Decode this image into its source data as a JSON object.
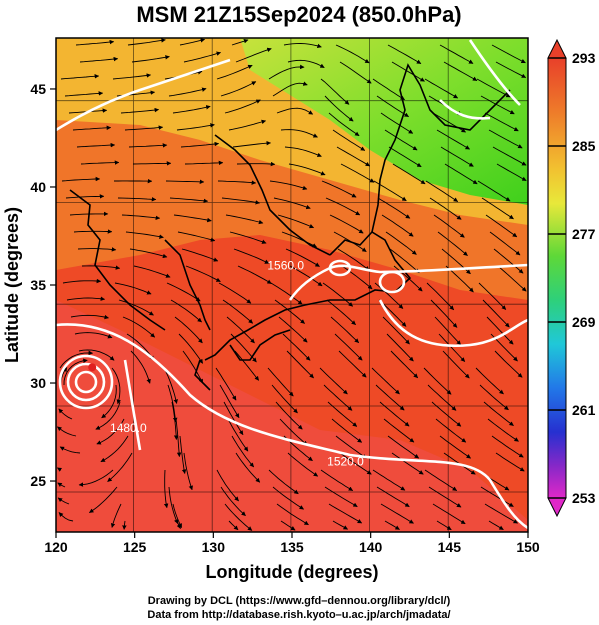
{
  "title": "MSM 21Z15Sep2024 (850.0hPa)",
  "xlabel": "Longitude (degrees)",
  "ylabel": "Latitude  (degrees)",
  "x_ticks": [
    120,
    125,
    130,
    135,
    140,
    145,
    150
  ],
  "y_ticks": [
    25,
    30,
    35,
    40,
    45
  ],
  "x_range": [
    120,
    150
  ],
  "y_range": [
    22.4,
    47.6
  ],
  "colorbar": {
    "min": 253,
    "max": 293,
    "labels": [
      293,
      285,
      277,
      269,
      261,
      253
    ]
  },
  "contour_labels": [
    {
      "text": "1560.0",
      "lon": 134.6,
      "lat": 35.8
    },
    {
      "text": "1480.0",
      "lon": 124.6,
      "lat": 27.5
    },
    {
      "text": "1520.0",
      "lon": 138.4,
      "lat": 25.8
    }
  ],
  "typhoon_center": {
    "lon": 122.3,
    "lat": 30.8
  },
  "credits": {
    "line1": "Drawing by DCL (https://www.gfd–dennou.org/library/dcl/)",
    "line2": "Data from http://database.rish.kyoto–u.ac.jp/arch/jmadata/"
  }
}
